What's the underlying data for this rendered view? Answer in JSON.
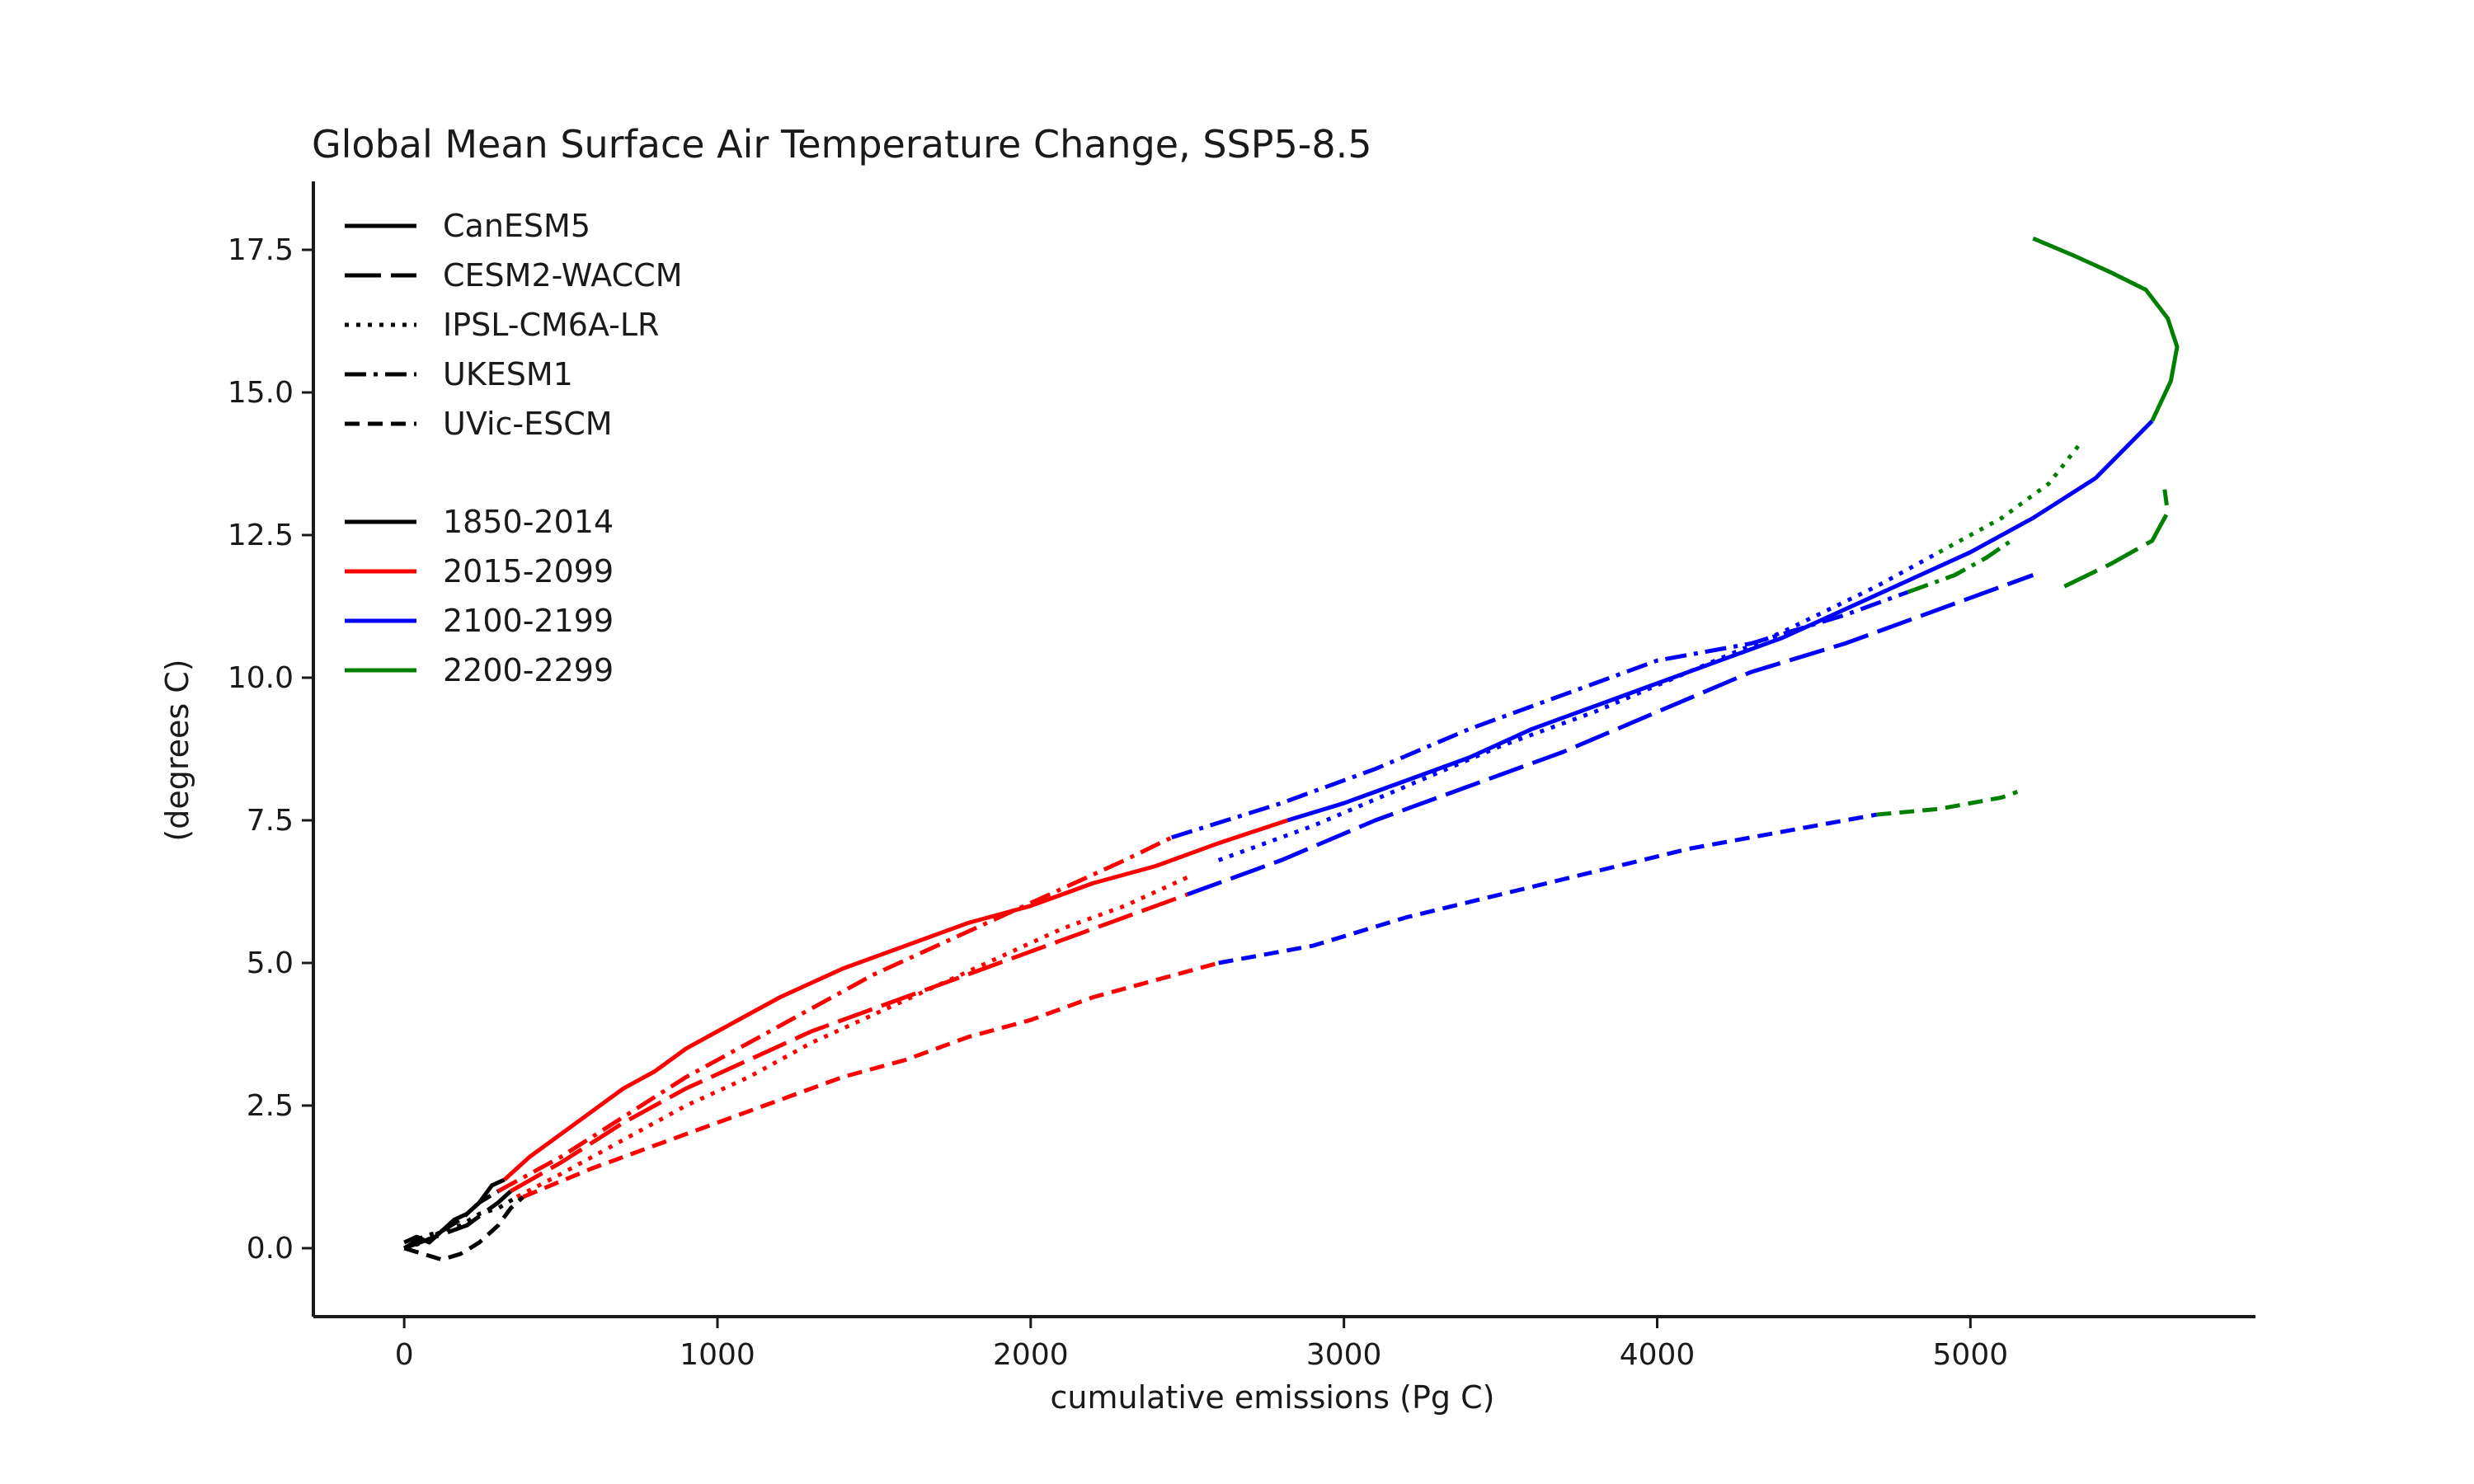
{
  "chart_data": {
    "type": "line",
    "title": "Global Mean Surface Air Temperature Change, SSP5-8.5",
    "xlabel": "cumulative emissions (Pg C)",
    "ylabel": "(degrees C)",
    "xlim": [
      -290,
      5910
    ],
    "ylim": [
      -1.2,
      18.7
    ],
    "xticks": [
      0,
      1000,
      2000,
      3000,
      4000,
      5000
    ],
    "yticks": [
      0.0,
      2.5,
      5.0,
      7.5,
      10.0,
      12.5,
      15.0,
      17.5
    ],
    "xtick_labels": [
      "0",
      "1000",
      "2000",
      "3000",
      "4000",
      "5000"
    ],
    "ytick_labels": [
      "0.0",
      "2.5",
      "5.0",
      "7.5",
      "10.0",
      "12.5",
      "15.0",
      "17.5"
    ],
    "grid": false,
    "legend_placement": "top-left",
    "model_legend": [
      {
        "name": "CanESM5",
        "style": "solid"
      },
      {
        "name": "CESM2-WACCM",
        "style": "longdash"
      },
      {
        "name": "IPSL-CM6A-LR",
        "style": "dotted"
      },
      {
        "name": "UKESM1",
        "style": "dashdot"
      },
      {
        "name": "UVic-ESCM",
        "style": "dashed"
      }
    ],
    "period_legend": [
      {
        "name": "1850-2014",
        "color": "#000000"
      },
      {
        "name": "2015-2099",
        "color": "#ff0000"
      },
      {
        "name": "2100-2199",
        "color": "#0000ff"
      },
      {
        "name": "2200-2299",
        "color": "#008000"
      }
    ],
    "series": [
      {
        "model": "CanESM5",
        "period": "1850-2014",
        "x": [
          0,
          40,
          80,
          120,
          160,
          200,
          240,
          280,
          320
        ],
        "y": [
          0.1,
          0.2,
          0.1,
          0.3,
          0.5,
          0.6,
          0.8,
          1.1,
          1.2
        ]
      },
      {
        "model": "CanESM5",
        "period": "2015-2099",
        "x": [
          320,
          400,
          500,
          600,
          700,
          800,
          900,
          1000,
          1200,
          1400,
          1600,
          1800,
          2000,
          2200,
          2400,
          2600,
          2820
        ],
        "y": [
          1.2,
          1.6,
          2.0,
          2.4,
          2.8,
          3.1,
          3.5,
          3.8,
          4.4,
          4.9,
          5.3,
          5.7,
          6.0,
          6.4,
          6.7,
          7.1,
          7.5
        ]
      },
      {
        "model": "CanESM5",
        "period": "2100-2199",
        "x": [
          2820,
          3000,
          3200,
          3400,
          3600,
          3800,
          4000,
          4200,
          4400,
          4600,
          4800,
          5000,
          5200,
          5400,
          5580
        ],
        "y": [
          7.5,
          7.8,
          8.2,
          8.6,
          9.1,
          9.5,
          9.9,
          10.3,
          10.7,
          11.2,
          11.7,
          12.2,
          12.8,
          13.5,
          14.5
        ]
      },
      {
        "model": "CanESM5",
        "period": "2200-2299",
        "x": [
          5580,
          5640,
          5660,
          5630,
          5560,
          5450,
          5330,
          5200
        ],
        "y": [
          14.5,
          15.2,
          15.8,
          16.3,
          16.8,
          17.1,
          17.4,
          17.7
        ]
      },
      {
        "model": "CESM2-WACCM",
        "period": "1850-2014",
        "x": [
          0,
          50,
          100,
          150,
          200,
          250,
          300,
          340
        ],
        "y": [
          0.0,
          0.1,
          0.2,
          0.3,
          0.4,
          0.6,
          0.8,
          1.0
        ]
      },
      {
        "model": "CESM2-WACCM",
        "period": "2015-2099",
        "x": [
          340,
          500,
          700,
          900,
          1100,
          1300,
          1500,
          1700,
          1900,
          2100,
          2300,
          2500
        ],
        "y": [
          1.0,
          1.5,
          2.2,
          2.8,
          3.3,
          3.8,
          4.2,
          4.6,
          5.0,
          5.4,
          5.8,
          6.2
        ]
      },
      {
        "model": "CESM2-WACCM",
        "period": "2100-2199",
        "x": [
          2500,
          2800,
          3100,
          3400,
          3700,
          4000,
          4300,
          4600,
          4900,
          5200
        ],
        "y": [
          6.2,
          6.8,
          7.5,
          8.1,
          8.7,
          9.4,
          10.1,
          10.6,
          11.2,
          11.8
        ]
      },
      {
        "model": "CESM2-WACCM",
        "period": "2200-2299",
        "x": [
          5300,
          5450,
          5580,
          5630,
          5620
        ],
        "y": [
          11.6,
          12.0,
          12.4,
          12.9,
          13.3
        ]
      },
      {
        "model": "IPSL-CM6A-LR",
        "period": "1850-2014",
        "x": [
          0,
          60,
          120,
          180,
          240,
          300,
          360
        ],
        "y": [
          0.0,
          0.1,
          0.3,
          0.4,
          0.6,
          0.7,
          0.9
        ]
      },
      {
        "model": "IPSL-CM6A-LR",
        "period": "2015-2099",
        "x": [
          360,
          500,
          700,
          900,
          1100,
          1300,
          1500,
          1700,
          1900,
          2100,
          2300,
          2500
        ],
        "y": [
          0.9,
          1.3,
          1.9,
          2.5,
          3.0,
          3.6,
          4.1,
          4.6,
          5.1,
          5.6,
          6.0,
          6.5
        ]
      },
      {
        "model": "IPSL-CM6A-LR",
        "period": "2100-2199",
        "x": [
          2600,
          2900,
          3200,
          3500,
          3800,
          4100,
          4400,
          4700,
          4900
        ],
        "y": [
          6.8,
          7.4,
          8.1,
          8.8,
          9.4,
          10.1,
          10.8,
          11.6,
          12.2
        ]
      },
      {
        "model": "IPSL-CM6A-LR",
        "period": "2200-2299",
        "x": [
          4900,
          5100,
          5250,
          5350
        ],
        "y": [
          12.2,
          12.8,
          13.4,
          14.1
        ]
      },
      {
        "model": "UKESM1",
        "period": "1850-2014",
        "x": [
          0,
          60,
          120,
          180,
          240,
          300
        ],
        "y": [
          0.0,
          0.2,
          0.3,
          0.5,
          0.8,
          1.0
        ]
      },
      {
        "model": "UKESM1",
        "period": "2015-2099",
        "x": [
          300,
          500,
          700,
          900,
          1100,
          1300,
          1500,
          1700,
          1900,
          2100,
          2300,
          2450
        ],
        "y": [
          1.0,
          1.6,
          2.3,
          3.0,
          3.6,
          4.2,
          4.8,
          5.3,
          5.8,
          6.3,
          6.8,
          7.2
        ]
      },
      {
        "model": "UKESM1",
        "period": "2100-2199",
        "x": [
          2450,
          2800,
          3100,
          3400,
          3700,
          4000,
          4300,
          4600,
          4800
        ],
        "y": [
          7.2,
          7.8,
          8.4,
          9.1,
          9.7,
          10.3,
          10.6,
          11.1,
          11.5
        ]
      },
      {
        "model": "UKESM1",
        "period": "2200-2299",
        "x": [
          4800,
          4950,
          5050,
          5130
        ],
        "y": [
          11.5,
          11.8,
          12.1,
          12.4
        ]
      },
      {
        "model": "UVic-ESCM",
        "period": "1850-2014",
        "x": [
          0,
          60,
          120,
          180,
          240,
          300,
          340,
          380
        ],
        "y": [
          0.0,
          -0.1,
          -0.2,
          -0.1,
          0.1,
          0.4,
          0.7,
          0.9
        ]
      },
      {
        "model": "UVic-ESCM",
        "period": "2015-2099",
        "x": [
          380,
          600,
          800,
          1000,
          1200,
          1400,
          1600,
          1800,
          2000,
          2200,
          2400,
          2600
        ],
        "y": [
          0.9,
          1.4,
          1.8,
          2.2,
          2.6,
          3.0,
          3.3,
          3.7,
          4.0,
          4.4,
          4.7,
          5.0
        ]
      },
      {
        "model": "UVic-ESCM",
        "period": "2100-2199",
        "x": [
          2600,
          2900,
          3200,
          3500,
          3800,
          4100,
          4400,
          4700
        ],
        "y": [
          5.0,
          5.3,
          5.8,
          6.2,
          6.6,
          7.0,
          7.3,
          7.6
        ]
      },
      {
        "model": "UVic-ESCM",
        "period": "2200-2299",
        "x": [
          4700,
          4900,
          5100,
          5150
        ],
        "y": [
          7.6,
          7.7,
          7.9,
          8.0
        ]
      }
    ]
  }
}
